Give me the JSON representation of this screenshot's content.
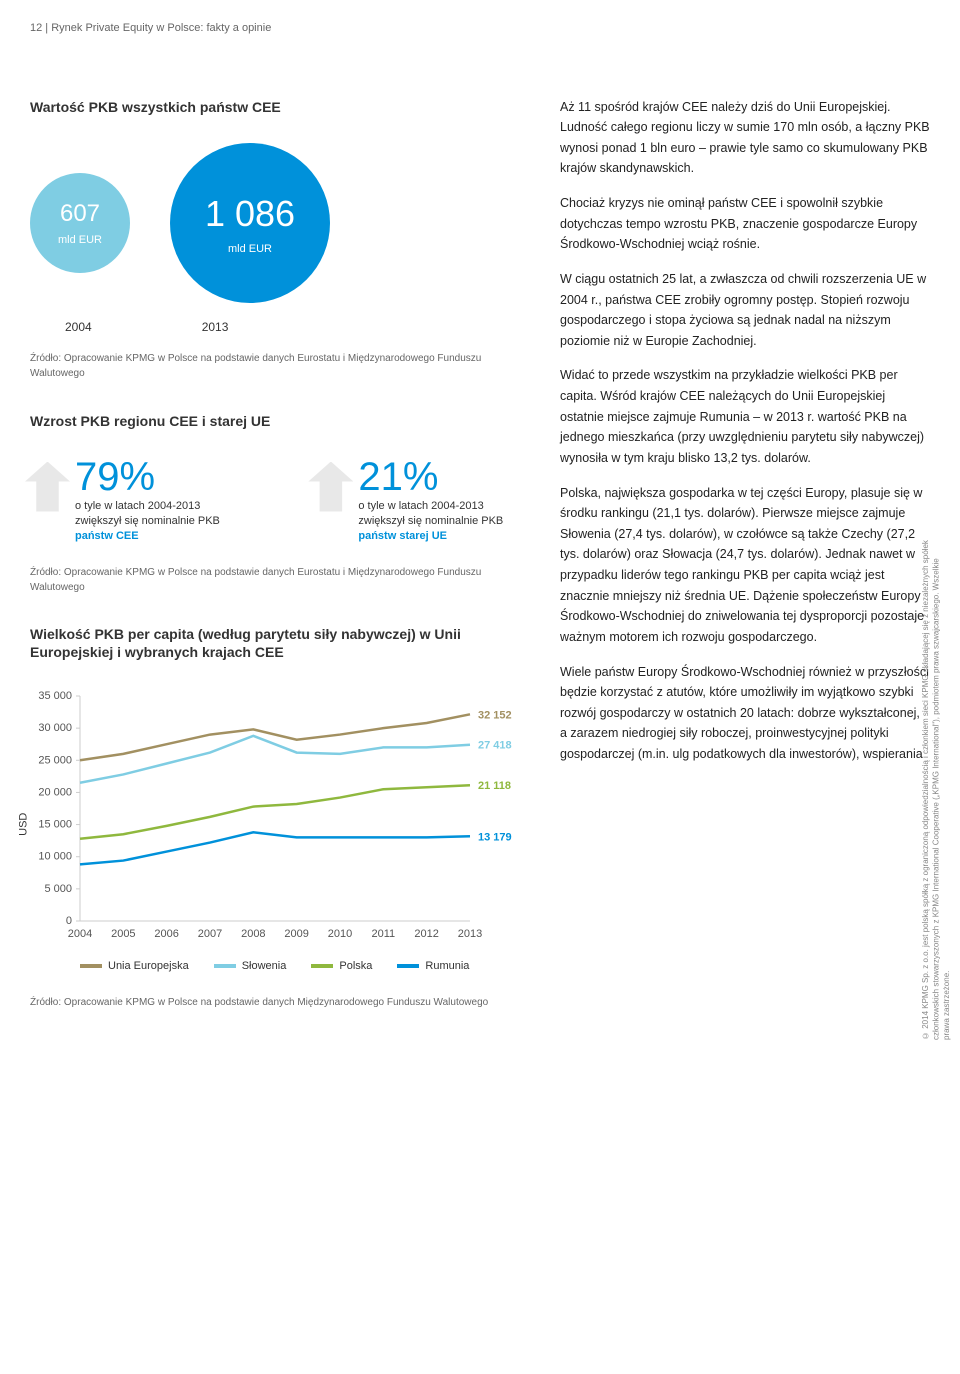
{
  "page_header": "12 | Rynek Private Equity w Polsce: fakty a opinie",
  "section1": {
    "title": "Wartość PKB wszystkich państw CEE",
    "circle_small": {
      "value": "607",
      "unit": "mld EUR",
      "year": "2004",
      "color": "#7fcde3"
    },
    "circle_large": {
      "value": "1 086",
      "unit": "mld EUR",
      "year": "2013",
      "color": "#0091da"
    },
    "source": "Źródło: Opracowanie KPMG w Polsce na podstawie danych Eurostatu i Międzynarodowego Funduszu Walutowego"
  },
  "section2": {
    "title": "Wzrost PKB regionu CEE i starej UE",
    "arrow1": {
      "pct": "79",
      "pct_sign": "%",
      "desc_pre": "o tyle w latach 2004-2013 zwiększył się nominalnie PKB ",
      "desc_bold": "państw CEE",
      "color": "#0091da"
    },
    "arrow2": {
      "pct": "21",
      "pct_sign": "%",
      "desc_pre": "o tyle w latach 2004-2013 zwiększył się nominalnie PKB ",
      "desc_bold": "państw starej UE",
      "color": "#0091da"
    },
    "source": "Źródło: Opracowanie KPMG w Polsce na podstawie danych Eurostatu i Międzynarodowego Funduszu Walutowego"
  },
  "chart": {
    "type": "line",
    "title": "Wielkość PKB per capita (według parytetu siły nabywczej) w Unii Europejskiej i wybranych krajach CEE",
    "ylabel": "USD",
    "ylim": [
      0,
      35000
    ],
    "ytick_step": 5000,
    "yticks": [
      "0",
      "5 000",
      "10 000",
      "15 000",
      "20 000",
      "25 000",
      "30 000",
      "35 000"
    ],
    "xticks": [
      "2004",
      "2005",
      "2006",
      "2007",
      "2008",
      "2009",
      "2010",
      "2011",
      "2012",
      "2013"
    ],
    "grid_color": "#dddddd",
    "axis_color": "#cccccc",
    "line_width": 2.5,
    "label_fontsize": 11,
    "end_label_color": "#666666",
    "series": [
      {
        "name": "Unia Europejska",
        "color": "#a29061",
        "values": [
          25000,
          26000,
          27500,
          29000,
          29800,
          28200,
          29000,
          30000,
          30800,
          32152
        ],
        "end_label": "32 152"
      },
      {
        "name": "Słowenia",
        "color": "#7fcde3",
        "values": [
          21500,
          22800,
          24500,
          26200,
          28800,
          26200,
          26000,
          27000,
          27000,
          27418
        ],
        "end_label": "27 418"
      },
      {
        "name": "Polska",
        "color": "#8fb83e",
        "values": [
          12800,
          13500,
          14800,
          16200,
          17800,
          18200,
          19200,
          20500,
          20800,
          21118
        ],
        "end_label": "21 118"
      },
      {
        "name": "Rumunia",
        "color": "#0091da",
        "values": [
          8800,
          9400,
          10800,
          12200,
          13800,
          13000,
          13000,
          13000,
          13000,
          13179
        ],
        "end_label": "13 179"
      }
    ],
    "source": "Źródło: Opracowanie KPMG w Polsce na podstawie danych Międzynarodowego Funduszu Walutowego"
  },
  "body_text": {
    "p1": "Aż 11 spośród krajów CEE należy dziś do Unii Europejskiej. Ludność całego regionu liczy w sumie 170 mln osób, a łączny PKB wynosi ponad 1 bln euro – prawie tyle samo co skumulowany PKB krajów skandynawskich.",
    "p2": "Chociaż kryzys nie ominął państw CEE i spowolnił szybkie dotychczas tempo wzrostu PKB, znaczenie gospodarcze Europy Środkowo-Wschodniej wciąż rośnie.",
    "p3": "W ciągu ostatnich 25 lat, a zwłaszcza od chwili rozszerzenia UE w 2004 r., państwa CEE zrobiły ogromny postęp. Stopień rozwoju gospodarczego i stopa życiowa są jednak nadal na niższym poziomie niż w Europie Zachodniej.",
    "p4": "Widać to przede wszystkim na przykładzie wielkości PKB per capita. Wśród krajów CEE należących do Unii Europejskiej ostatnie miejsce zajmuje Rumunia – w 2013 r. wartość PKB na jednego mieszkańca (przy uwzględnieniu parytetu siły nabywczej) wynosiła w tym kraju blisko 13,2 tys. dolarów.",
    "p5": "Polska, największa gospodarka w tej części Europy, plasuje się w środku rankingu (21,1 tys. dolarów). Pierwsze miejsce zajmuje Słowenia (27,4 tys. dolarów), w czołówce są także Czechy (27,2 tys. dolarów) oraz Słowacja (24,7 tys. dolarów). Jednak nawet w przypadku liderów tego rankingu PKB per capita wciąż jest znacznie mniejszy niż średnia UE. Dążenie społeczeństw Europy Środkowo-Wschodniej do zniwelowania tej dysproporcji pozostaje ważnym motorem ich rozwoju gospodarczego.",
    "p6": "Wiele państw Europy Środkowo-Wschodniej również w przyszłości będzie korzystać z atutów, które umożliwiły im wyjątkowo szybki rozwój gospodarczy w ostatnich 20 latach: dobrze wykształconej, a zarazem niedrogiej siły roboczej, proinwestycyjnej polityki gospodarczej (m.in. ulg podatkowych dla inwestorów), wspierania"
  },
  "copyright": "© 2014 KPMG Sp. z o.o. jest polską spółką z ograniczoną odpowiedzialnością i członkiem sieci KPMG składającej się z niezależnych spółek członkowskich stowarzyszonych z KPMG International Cooperative („KPMG International\"), podmiotem prawa szwajcarskiego. Wszelkie prawa zastrzeżone."
}
